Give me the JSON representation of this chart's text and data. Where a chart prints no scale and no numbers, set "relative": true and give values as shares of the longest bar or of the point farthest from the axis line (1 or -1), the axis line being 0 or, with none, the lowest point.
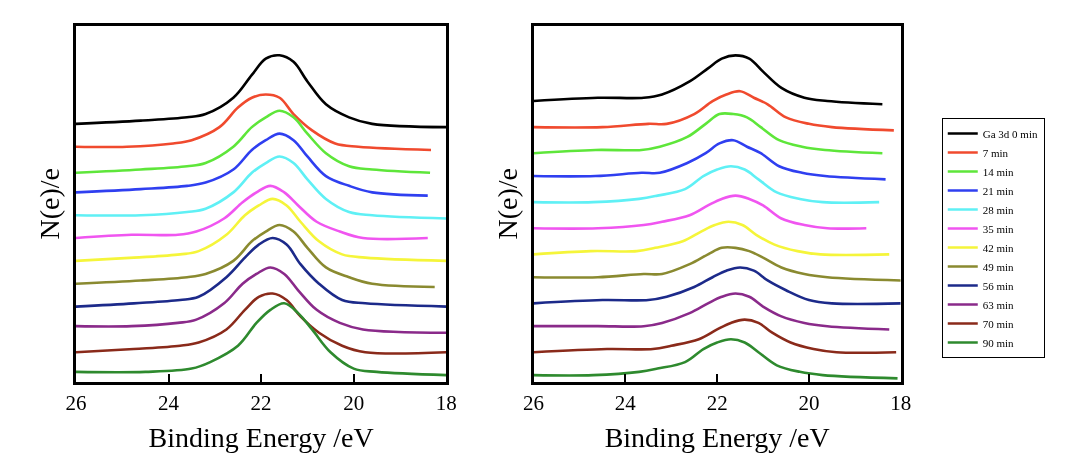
{
  "chart_data": [
    {
      "type": "line",
      "relative": true,
      "xlabel": "Binding Energy /eV",
      "ylabel": "N(e)/e",
      "xlim": [
        26,
        18
      ],
      "xticks": [
        26,
        24,
        22,
        20,
        18
      ],
      "tick_labels": "x",
      "series": [
        {
          "color": "#000000",
          "x": [
            26,
            24.6,
            23.6,
            23.2,
            22.6,
            22.2,
            21.9,
            21.6,
            21.3,
            21.0,
            20.6,
            20.1,
            19.6,
            18
          ],
          "values": [
            0.79,
            0.8,
            0.81,
            0.82,
            0.87,
            0.94,
            0.99,
            1.0,
            0.98,
            0.92,
            0.85,
            0.81,
            0.79,
            0.78
          ]
        },
        {
          "color": "#f04a2e",
          "x": [
            26,
            24.9,
            23.9,
            23.5,
            22.9,
            22.5,
            22.2,
            21.9,
            21.6,
            21.3,
            20.9,
            20.4,
            19.9,
            18.33
          ],
          "values": [
            0.72,
            0.72,
            0.73,
            0.74,
            0.78,
            0.84,
            0.87,
            0.88,
            0.87,
            0.82,
            0.77,
            0.73,
            0.72,
            0.71
          ]
        },
        {
          "color": "#5ee63a",
          "x": [
            26,
            24.6,
            23.6,
            23.2,
            22.6,
            22.2,
            21.9,
            21.6,
            21.3,
            21.0,
            20.6,
            20.1,
            19.6,
            18.35
          ],
          "values": [
            0.64,
            0.65,
            0.66,
            0.67,
            0.72,
            0.78,
            0.81,
            0.83,
            0.81,
            0.76,
            0.7,
            0.66,
            0.65,
            0.64
          ]
        },
        {
          "color": "#2f3ff0",
          "x": [
            26,
            24.6,
            23.6,
            23.2,
            22.6,
            22.2,
            21.9,
            21.6,
            21.3,
            21.0,
            20.6,
            20.1,
            19.6,
            18.4
          ],
          "values": [
            0.58,
            0.59,
            0.6,
            0.61,
            0.65,
            0.71,
            0.74,
            0.76,
            0.74,
            0.69,
            0.63,
            0.6,
            0.58,
            0.57
          ]
        },
        {
          "color": "#5ff0f5",
          "x": [
            26,
            24.6,
            23.6,
            23.2,
            22.6,
            22.2,
            21.9,
            21.6,
            21.3,
            21.0,
            20.6,
            20.1,
            19.6,
            18
          ],
          "values": [
            0.51,
            0.51,
            0.52,
            0.53,
            0.58,
            0.64,
            0.67,
            0.69,
            0.67,
            0.62,
            0.56,
            0.52,
            0.51,
            0.5
          ]
        },
        {
          "color": "#f055f0",
          "x": [
            26,
            24.8,
            23.8,
            23.4,
            22.8,
            22.4,
            22.1,
            21.8,
            21.5,
            21.2,
            20.8,
            20.3,
            19.8,
            18.4
          ],
          "values": [
            0.44,
            0.45,
            0.45,
            0.46,
            0.5,
            0.55,
            0.58,
            0.6,
            0.58,
            0.54,
            0.49,
            0.46,
            0.44,
            0.44
          ]
        },
        {
          "color": "#f5f53a",
          "x": [
            26,
            24.75,
            23.75,
            23.35,
            22.75,
            22.35,
            22.05,
            21.75,
            21.45,
            21.15,
            20.75,
            20.25,
            19.75,
            18
          ],
          "values": [
            0.37,
            0.38,
            0.39,
            0.4,
            0.45,
            0.51,
            0.54,
            0.56,
            0.54,
            0.49,
            0.43,
            0.39,
            0.38,
            0.37
          ]
        },
        {
          "color": "#8a8a30",
          "x": [
            26,
            24.6,
            23.6,
            23.2,
            22.6,
            22.2,
            21.9,
            21.6,
            21.3,
            21.0,
            20.6,
            20.1,
            19.6,
            18.25
          ],
          "values": [
            0.3,
            0.31,
            0.32,
            0.33,
            0.37,
            0.43,
            0.46,
            0.48,
            0.46,
            0.41,
            0.35,
            0.32,
            0.3,
            0.29
          ]
        },
        {
          "color": "#1c2a8a",
          "x": [
            26,
            24.75,
            23.75,
            23.35,
            22.75,
            22.35,
            22.05,
            21.75,
            21.45,
            21.15,
            20.75,
            20.25,
            19.75,
            18
          ],
          "values": [
            0.23,
            0.24,
            0.25,
            0.26,
            0.32,
            0.38,
            0.42,
            0.44,
            0.42,
            0.36,
            0.3,
            0.25,
            0.24,
            0.23
          ]
        },
        {
          "color": "#8a2a8a",
          "x": [
            26,
            24.8,
            23.8,
            23.4,
            22.8,
            22.4,
            22.1,
            21.8,
            21.5,
            21.2,
            20.8,
            20.3,
            19.8,
            18
          ],
          "values": [
            0.17,
            0.17,
            0.18,
            0.19,
            0.24,
            0.3,
            0.33,
            0.35,
            0.33,
            0.28,
            0.22,
            0.18,
            0.16,
            0.15
          ]
        },
        {
          "color": "#8a2a1a",
          "x": [
            26,
            24.75,
            23.75,
            23.35,
            22.75,
            22.35,
            22.05,
            21.75,
            21.45,
            21.15,
            20.75,
            20.25,
            19.75,
            18
          ],
          "values": [
            0.09,
            0.1,
            0.11,
            0.12,
            0.16,
            0.22,
            0.26,
            0.27,
            0.25,
            0.2,
            0.15,
            0.11,
            0.09,
            0.09
          ]
        },
        {
          "color": "#2e8a2e",
          "x": [
            26,
            24.5,
            23.5,
            23.1,
            22.5,
            22.1,
            21.8,
            21.5,
            21.2,
            20.9,
            20.5,
            20.0,
            19.5,
            18
          ],
          "values": [
            0.03,
            0.03,
            0.04,
            0.06,
            0.11,
            0.18,
            0.22,
            0.24,
            0.21,
            0.16,
            0.09,
            0.04,
            0.03,
            0.02
          ]
        }
      ]
    },
    {
      "type": "line",
      "relative": true,
      "xlabel": "Binding Energy /eV",
      "ylabel": "N(e)/e",
      "xlim": [
        26,
        18
      ],
      "xticks": [
        26,
        24,
        22,
        20,
        18
      ],
      "tick_labels": "x",
      "legend": "right",
      "series": [
        {
          "name": "Ga 3d 0 min",
          "color": "#000000",
          "x": [
            26,
            24.6,
            23.6,
            23.2,
            22.6,
            22.2,
            21.9,
            21.6,
            21.3,
            21.0,
            20.6,
            20.1,
            19.6,
            18.4
          ],
          "values": [
            0.86,
            0.87,
            0.87,
            0.88,
            0.92,
            0.96,
            0.99,
            1.0,
            0.99,
            0.95,
            0.9,
            0.87,
            0.86,
            0.85
          ]
        },
        {
          "name": "7 min",
          "color": "#f04a2e",
          "x": [
            26,
            24.5,
            23.5,
            23.1,
            22.5,
            22.1,
            21.8,
            21.5,
            21.2,
            20.9,
            20.5,
            20.0,
            19.5,
            18.15
          ],
          "values": [
            0.78,
            0.78,
            0.79,
            0.79,
            0.82,
            0.86,
            0.88,
            0.89,
            0.87,
            0.85,
            0.81,
            0.79,
            0.78,
            0.77
          ]
        },
        {
          "name": "14 min",
          "color": "#5ee63a",
          "x": [
            26,
            24.65,
            23.65,
            23.25,
            22.65,
            22.25,
            21.95,
            21.65,
            21.35,
            21.05,
            20.65,
            20.15,
            19.65,
            18.4
          ],
          "values": [
            0.7,
            0.71,
            0.71,
            0.72,
            0.75,
            0.79,
            0.82,
            0.82,
            0.81,
            0.78,
            0.74,
            0.72,
            0.71,
            0.7
          ]
        },
        {
          "name": "21 min",
          "color": "#2f3ff0",
          "x": [
            26,
            24.65,
            23.65,
            23.25,
            22.65,
            22.25,
            21.95,
            21.65,
            21.35,
            21.05,
            20.65,
            20.15,
            19.65,
            18.33
          ],
          "values": [
            0.63,
            0.63,
            0.64,
            0.64,
            0.67,
            0.7,
            0.73,
            0.74,
            0.72,
            0.7,
            0.66,
            0.64,
            0.63,
            0.62
          ]
        },
        {
          "name": "28 min",
          "color": "#5ff0f5",
          "x": [
            26,
            24.7,
            23.7,
            23.3,
            22.7,
            22.3,
            22.0,
            21.7,
            21.4,
            21.1,
            20.7,
            20.2,
            19.7,
            18.47
          ],
          "values": [
            0.55,
            0.55,
            0.56,
            0.57,
            0.59,
            0.63,
            0.65,
            0.66,
            0.65,
            0.62,
            0.58,
            0.56,
            0.55,
            0.55
          ]
        },
        {
          "name": "35 min",
          "color": "#f055f0",
          "x": [
            26,
            24.6,
            23.6,
            23.2,
            22.6,
            22.2,
            21.9,
            21.6,
            21.3,
            21.0,
            20.6,
            20.1,
            19.6,
            18.75
          ],
          "values": [
            0.47,
            0.47,
            0.48,
            0.49,
            0.51,
            0.54,
            0.56,
            0.57,
            0.56,
            0.54,
            0.5,
            0.48,
            0.47,
            0.47
          ]
        },
        {
          "name": "42 min",
          "color": "#f5f53a",
          "x": [
            26,
            24.75,
            23.75,
            23.35,
            22.75,
            22.35,
            22.05,
            21.75,
            21.45,
            21.15,
            20.75,
            20.25,
            19.75,
            18.25
          ],
          "values": [
            0.39,
            0.4,
            0.4,
            0.41,
            0.43,
            0.46,
            0.48,
            0.49,
            0.48,
            0.45,
            0.42,
            0.4,
            0.39,
            0.39
          ]
        },
        {
          "name": "49 min",
          "color": "#8a8a30",
          "x": [
            26,
            24.6,
            23.6,
            23.2,
            22.6,
            22.2,
            21.9,
            21.6,
            21.3,
            21.0,
            20.6,
            20.1,
            19.6,
            18
          ],
          "values": [
            0.32,
            0.32,
            0.33,
            0.33,
            0.36,
            0.39,
            0.41,
            0.41,
            0.4,
            0.38,
            0.35,
            0.33,
            0.32,
            0.31
          ]
        },
        {
          "name": "56 min",
          "color": "#1c2a8a",
          "x": [
            26,
            24.5,
            23.5,
            23.1,
            22.5,
            22.1,
            21.8,
            21.5,
            21.2,
            20.9,
            20.5,
            20.0,
            19.5,
            18
          ],
          "values": [
            0.24,
            0.25,
            0.25,
            0.26,
            0.29,
            0.32,
            0.34,
            0.35,
            0.34,
            0.31,
            0.28,
            0.25,
            0.24,
            0.24
          ]
        },
        {
          "name": "63 min",
          "color": "#8a2a8a",
          "x": [
            26,
            24.6,
            23.6,
            23.2,
            22.6,
            22.2,
            21.9,
            21.6,
            21.3,
            21.0,
            20.6,
            20.1,
            19.6,
            18.25
          ],
          "values": [
            0.17,
            0.17,
            0.17,
            0.18,
            0.21,
            0.24,
            0.26,
            0.27,
            0.26,
            0.23,
            0.2,
            0.18,
            0.17,
            0.16
          ]
        },
        {
          "name": "70 min",
          "color": "#8a2a1a",
          "x": [
            26,
            24.4,
            23.4,
            23.0,
            22.4,
            22.0,
            21.7,
            21.4,
            21.1,
            20.8,
            20.4,
            19.9,
            19.4,
            18.1
          ],
          "values": [
            0.09,
            0.1,
            0.1,
            0.11,
            0.13,
            0.16,
            0.18,
            0.19,
            0.18,
            0.15,
            0.12,
            0.1,
            0.09,
            0.09
          ]
        },
        {
          "name": "90 min",
          "color": "#2e8a2e",
          "x": [
            26,
            24.7,
            23.7,
            23.3,
            22.7,
            22.3,
            22.0,
            21.7,
            21.4,
            21.1,
            20.7,
            20.2,
            19.7,
            18.07
          ],
          "values": [
            0.02,
            0.02,
            0.03,
            0.04,
            0.06,
            0.1,
            0.12,
            0.13,
            0.12,
            0.09,
            0.05,
            0.03,
            0.02,
            0.01
          ]
        }
      ]
    }
  ]
}
